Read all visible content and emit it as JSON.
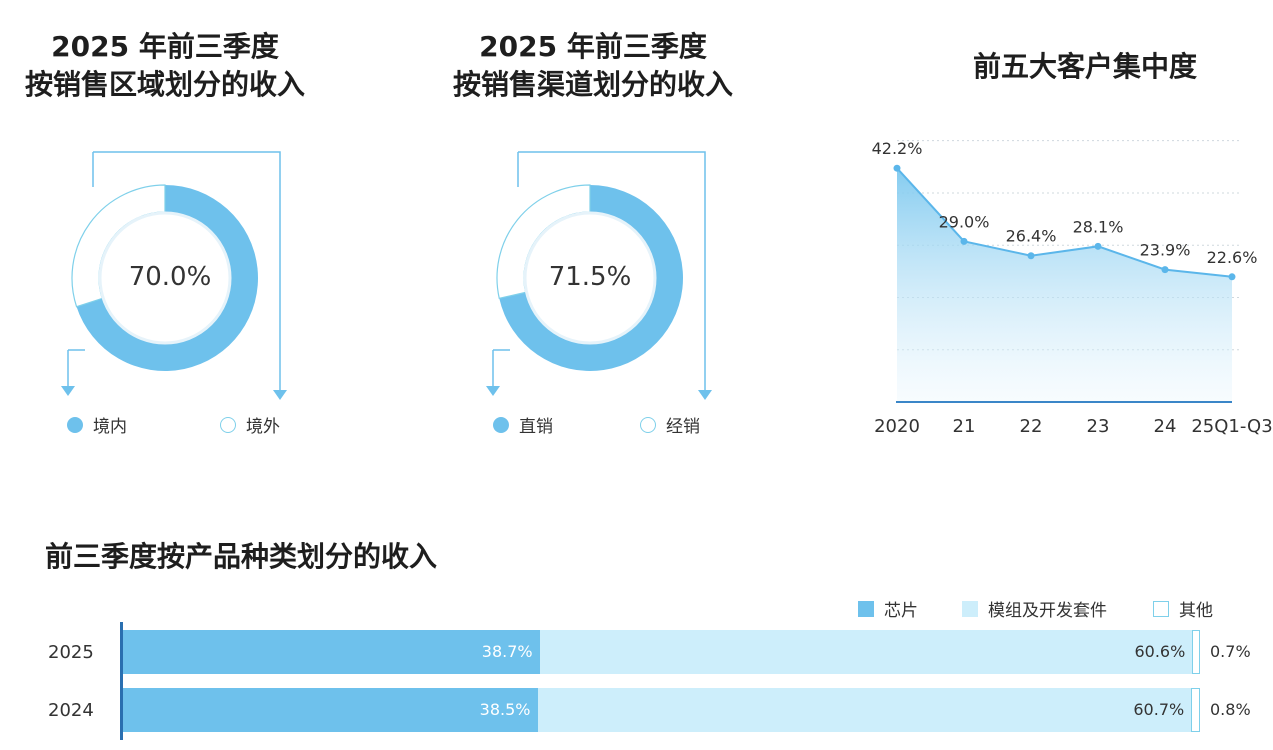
{
  "colors": {
    "primary": "#6ec1ec",
    "light": "#cdeefb",
    "line": "#5bb6ea",
    "outline": "#7fd0ea"
  },
  "region": {
    "title_line1": "2025 年前三季度",
    "title_line2": "按销售区域划分的收入",
    "center_label": "70.0%",
    "legend": [
      "境内",
      "境外"
    ]
  },
  "channel": {
    "title_line1": "2025 年前三季度",
    "title_line2": "按销售渠道划分的收入",
    "center_label": "71.5%",
    "legend": [
      "直销",
      "经销"
    ]
  },
  "concentration": {
    "title": "前五大客户集中度"
  },
  "product": {
    "title": "前三季度按产品种类划分的收入",
    "legend": [
      "芯片",
      "模组及开发套件",
      "其他"
    ],
    "rows": [
      {
        "label": "2025",
        "values": [
          "38.7%",
          "60.6%",
          "0.7%"
        ]
      },
      {
        "label": "2024",
        "values": [
          "38.5%",
          "60.7%",
          "0.8%"
        ]
      }
    ]
  },
  "chart_data": [
    {
      "type": "pie",
      "categories": [
        "境内",
        "境外"
      ],
      "values": [
        70.0,
        30.0
      ],
      "title": "2025 年前三季度 按销售区域划分的收入"
    },
    {
      "type": "pie",
      "categories": [
        "直销",
        "经销"
      ],
      "values": [
        71.5,
        28.5
      ],
      "title": "2025 年前三季度 按销售渠道划分的收入"
    },
    {
      "type": "area",
      "title": "前五大客户集中度",
      "x": [
        "2020",
        "21",
        "22",
        "23",
        "24",
        "25Q1-Q3"
      ],
      "series": [
        {
          "values": [
            42.2,
            29.0,
            26.4,
            28.1,
            23.9,
            22.6
          ]
        }
      ],
      "ylim": [
        0,
        50
      ],
      "grid": true
    },
    {
      "type": "bar",
      "stacked": true,
      "orientation": "horizontal",
      "title": "前三季度按产品种类划分的收入",
      "categories": [
        "2025",
        "2024"
      ],
      "series": [
        {
          "name": "芯片",
          "values": [
            38.7,
            38.5
          ]
        },
        {
          "name": "模组及开发套件",
          "values": [
            60.6,
            60.7
          ]
        },
        {
          "name": "其他",
          "values": [
            0.7,
            0.8
          ]
        }
      ],
      "legend": "top-right"
    }
  ]
}
